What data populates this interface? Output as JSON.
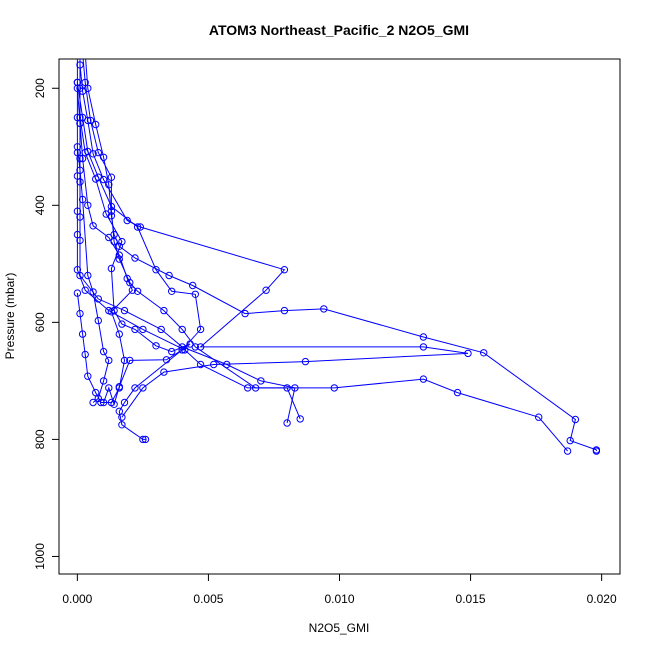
{
  "chart_data": {
    "type": "line",
    "title": "ATOM3 Northeast_Pacific_2 N2O5_GMI",
    "xlabel": "N2O5_GMI",
    "ylabel": "Pressure (mbar)",
    "xlim": [
      -0.0007,
      0.0207
    ],
    "ylim": [
      1030,
      150
    ],
    "y_reversed": true,
    "x_ticks": [
      0.0,
      0.005,
      0.01,
      0.015,
      0.02
    ],
    "x_tick_labels": [
      "0.000",
      "0.005",
      "0.010",
      "0.015",
      "0.020"
    ],
    "y_ticks": [
      200,
      400,
      600,
      800,
      1000
    ],
    "y_tick_labels": [
      "200",
      "400",
      "600",
      "800",
      "1000"
    ],
    "grid": false,
    "line_color": "#0000ff",
    "marker": "open-circle",
    "series": [
      {
        "points": [
          [
            0.0,
            140
          ],
          [
            0.0,
            190
          ],
          [
            0.0,
            250
          ],
          [
            0.0,
            310
          ],
          [
            0.0,
            350
          ],
          [
            0.0,
            410
          ],
          [
            0.0,
            450
          ],
          [
            0.0,
            510
          ],
          [
            0.0003,
            545
          ],
          [
            0.0012,
            580
          ],
          [
            0.0025,
            612
          ],
          [
            0.0041,
            647
          ],
          [
            0.0047,
            672
          ],
          [
            0.0065,
            712
          ],
          [
            0.008,
            712
          ],
          [
            0.0085,
            765
          ]
        ]
      },
      {
        "points": [
          [
            0.0001,
            140
          ],
          [
            0.0001,
            200
          ],
          [
            0.0001,
            260
          ],
          [
            0.0001,
            320
          ],
          [
            0.0001,
            360
          ],
          [
            0.0001,
            420
          ],
          [
            0.0001,
            460
          ],
          [
            0.0001,
            520
          ],
          [
            0.0008,
            560
          ],
          [
            0.0018,
            580
          ],
          [
            0.0032,
            612
          ],
          [
            0.004,
            642
          ],
          [
            0.0057,
            672
          ],
          [
            0.007,
            700
          ],
          [
            0.0083,
            712
          ],
          [
            0.008,
            772
          ]
        ]
      },
      {
        "points": [
          [
            0.0002,
            140
          ],
          [
            0.0003,
            190
          ],
          [
            0.0005,
            255
          ],
          [
            0.0008,
            310
          ],
          [
            0.0013,
            352
          ],
          [
            0.0013,
            410
          ],
          [
            0.0014,
            462
          ],
          [
            0.0016,
            492
          ],
          [
            0.002,
            532
          ],
          [
            0.0023,
            547
          ],
          [
            0.0033,
            580
          ],
          [
            0.004,
            612
          ],
          [
            0.0045,
            642
          ],
          [
            0.0068,
            712
          ],
          [
            0.0098,
            712
          ],
          [
            0.0132,
            697
          ],
          [
            0.0145,
            720
          ],
          [
            0.0176,
            762
          ],
          [
            0.0187,
            820
          ]
        ]
      },
      {
        "points": [
          [
            0.0003,
            140
          ],
          [
            0.0004,
            200
          ],
          [
            0.0007,
            262
          ],
          [
            0.001,
            318
          ],
          [
            0.0012,
            365
          ],
          [
            0.0013,
            418
          ],
          [
            0.0014,
            450
          ],
          [
            0.0016,
            470
          ],
          [
            0.0022,
            490
          ],
          [
            0.0035,
            520
          ],
          [
            0.0044,
            537
          ],
          [
            0.0064,
            585
          ],
          [
            0.0079,
            580
          ],
          [
            0.0094,
            577
          ],
          [
            0.0132,
            625
          ],
          [
            0.0155,
            652
          ],
          [
            0.019,
            766
          ],
          [
            0.0188,
            802
          ],
          [
            0.0198,
            818
          ],
          [
            0.0198,
            820
          ]
        ]
      },
      {
        "points": [
          [
            0.0001,
            160
          ],
          [
            0.0002,
            205
          ],
          [
            0.0004,
            255
          ],
          [
            0.0006,
            312
          ],
          [
            0.001,
            356
          ],
          [
            0.0019,
            426
          ],
          [
            0.0024,
            437
          ],
          [
            0.0079,
            510
          ],
          [
            0.0072,
            545
          ],
          [
            0.0047,
            642
          ],
          [
            0.0132,
            642
          ],
          [
            0.0149,
            653
          ],
          [
            0.0087,
            667
          ],
          [
            0.0052,
            672
          ],
          [
            0.0033,
            685
          ],
          [
            0.0025,
            712
          ],
          [
            0.0017,
            762
          ]
        ]
      },
      {
        "points": [
          [
            0.0,
            190
          ],
          [
            0.0002,
            250
          ],
          [
            0.0004,
            308
          ],
          [
            0.0008,
            352
          ],
          [
            0.0013,
            402
          ],
          [
            0.0023,
            437
          ],
          [
            0.003,
            510
          ],
          [
            0.0036,
            547
          ],
          [
            0.0045,
            552
          ],
          [
            0.0047,
            612
          ],
          [
            0.004,
            647
          ],
          [
            0.0034,
            664
          ],
          [
            0.002,
            665
          ],
          [
            0.0016,
            710
          ],
          [
            0.0014,
            740
          ],
          [
            0.0012,
            712
          ],
          [
            0.001,
            737
          ]
        ]
      },
      {
        "points": [
          [
            0.0,
            200
          ],
          [
            0.0001,
            260
          ],
          [
            0.0002,
            320
          ],
          [
            0.0004,
            400
          ],
          [
            0.0006,
            435
          ],
          [
            0.0012,
            455
          ],
          [
            0.0016,
            485
          ],
          [
            0.0019,
            525
          ],
          [
            0.0021,
            545
          ],
          [
            0.0013,
            582
          ],
          [
            0.0016,
            620
          ],
          [
            0.0018,
            665
          ],
          [
            0.0016,
            712
          ],
          [
            0.0013,
            737
          ],
          [
            0.0009,
            737
          ],
          [
            0.0007,
            720
          ],
          [
            0.0004,
            692
          ],
          [
            0.0003,
            655
          ],
          [
            0.0002,
            620
          ],
          [
            0.0001,
            585
          ],
          [
            0.0,
            550
          ]
        ]
      },
      {
        "points": [
          [
            0.0001,
            250
          ],
          [
            0.0003,
            310
          ],
          [
            0.0007,
            355
          ],
          [
            0.0011,
            415
          ],
          [
            0.0017,
            462
          ],
          [
            0.0013,
            508
          ],
          [
            0.0014,
            580
          ],
          [
            0.0017,
            603
          ],
          [
            0.0022,
            612
          ],
          [
            0.003,
            640
          ],
          [
            0.0036,
            650
          ],
          [
            0.0043,
            637
          ],
          [
            0.004,
            647
          ],
          [
            0.0022,
            712
          ],
          [
            0.0018,
            737
          ],
          [
            0.0016,
            752
          ],
          [
            0.0017,
            775
          ],
          [
            0.0025,
            800
          ],
          [
            0.0026,
            800
          ]
        ]
      },
      {
        "points": [
          [
            0.0,
            300
          ],
          [
            0.0001,
            340
          ],
          [
            0.0002,
            390
          ],
          [
            0.0004,
            520
          ],
          [
            0.0006,
            548
          ],
          [
            0.0008,
            597
          ],
          [
            0.001,
            650
          ],
          [
            0.0012,
            665
          ],
          [
            0.001,
            700
          ],
          [
            0.0008,
            730
          ],
          [
            0.0006,
            737
          ]
        ]
      }
    ]
  }
}
